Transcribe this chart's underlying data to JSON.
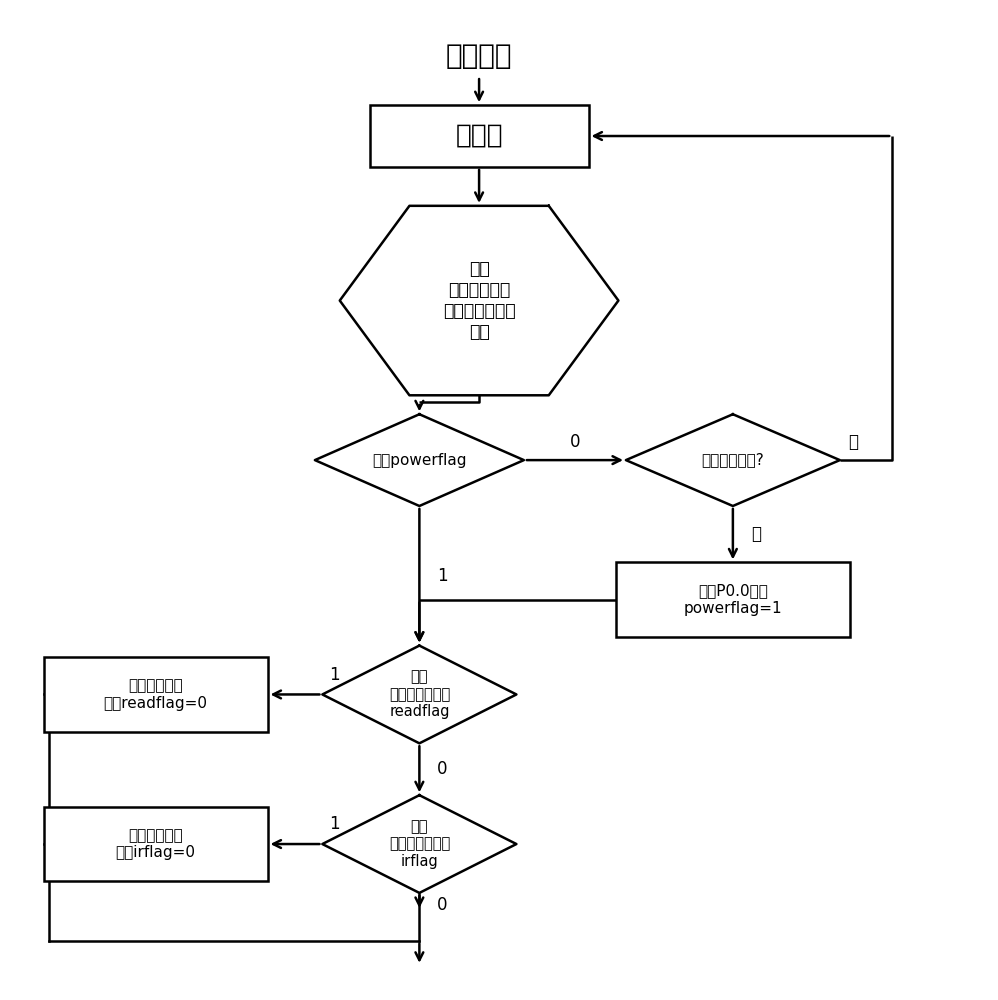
{
  "bg_color": "#ffffff",
  "line_color": "#000000",
  "text_color": "#000000",
  "start_label": "电源打开",
  "init_label": "初始化",
  "wait_label": "等待\n计算机命令包\n红外遥控器开机\n指令",
  "cpf_label": "检查powerflag",
  "pwr_label": "开启电源指令?",
  "set_label": "设置P0.0为低\npowerflag=1",
  "crd_label": "检查\n串口指令标志位\nreadflag",
  "prd_label": "处理串口指令\n设置readflag=0",
  "cir_label": "检查\n红外指令标志位\nirflag",
  "pir_label": "处理红外指令\n设置irflag=0",
  "label_0a": "0",
  "label_1a": "1",
  "label_1b": "1",
  "label_1c": "1",
  "label_0b": "0",
  "label_0c": "0",
  "label_yes": "是",
  "label_no": "否",
  "lw": 1.8
}
